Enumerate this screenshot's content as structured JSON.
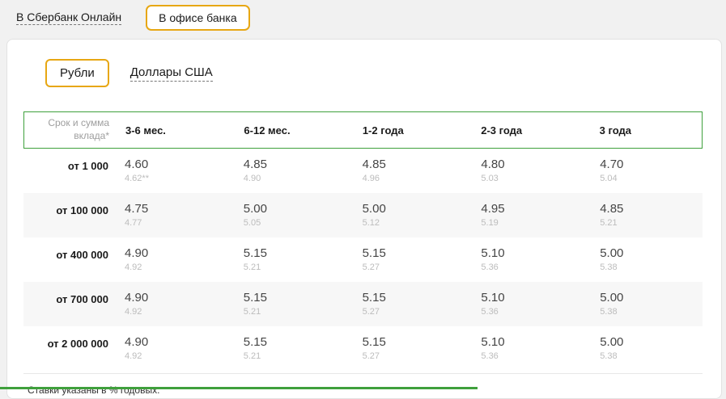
{
  "colors": {
    "accent_green": "#3fa03c",
    "accent_yellow": "#e7a713",
    "page_bg": "#f1f1f1",
    "row_stripe": "#f7f7f7",
    "sub_rate_text": "#bcbcbc"
  },
  "channel_switch": {
    "online_label": "В Сбербанк Онлайн",
    "office_label": "В офисе банка"
  },
  "currency_switch": {
    "rub_label": "Рубли",
    "usd_label": "Доллары США"
  },
  "table": {
    "corner_label": "Срок и сумма вклада*",
    "columns": [
      "3-6 мес.",
      "6-12 мес.",
      "1-2 года",
      "2-3 года",
      "3 года"
    ],
    "rows": [
      {
        "label": "от 1 000",
        "cells": [
          {
            "main": "4.60",
            "sub": "4.62**"
          },
          {
            "main": "4.85",
            "sub": "4.90"
          },
          {
            "main": "4.85",
            "sub": "4.96"
          },
          {
            "main": "4.80",
            "sub": "5.03"
          },
          {
            "main": "4.70",
            "sub": "5.04"
          }
        ]
      },
      {
        "label": "от 100 000",
        "cells": [
          {
            "main": "4.75",
            "sub": "4.77"
          },
          {
            "main": "5.00",
            "sub": "5.05"
          },
          {
            "main": "5.00",
            "sub": "5.12"
          },
          {
            "main": "4.95",
            "sub": "5.19"
          },
          {
            "main": "4.85",
            "sub": "5.21"
          }
        ]
      },
      {
        "label": "от 400 000",
        "cells": [
          {
            "main": "4.90",
            "sub": "4.92"
          },
          {
            "main": "5.15",
            "sub": "5.21"
          },
          {
            "main": "5.15",
            "sub": "5.27"
          },
          {
            "main": "5.10",
            "sub": "5.36"
          },
          {
            "main": "5.00",
            "sub": "5.38"
          }
        ]
      },
      {
        "label": "от 700 000",
        "cells": [
          {
            "main": "4.90",
            "sub": "4.92"
          },
          {
            "main": "5.15",
            "sub": "5.21"
          },
          {
            "main": "5.15",
            "sub": "5.27"
          },
          {
            "main": "5.10",
            "sub": "5.36"
          },
          {
            "main": "5.00",
            "sub": "5.38"
          }
        ]
      },
      {
        "label": "от 2 000 000",
        "cells": [
          {
            "main": "4.90",
            "sub": "4.92"
          },
          {
            "main": "5.15",
            "sub": "5.21"
          },
          {
            "main": "5.15",
            "sub": "5.27"
          },
          {
            "main": "5.10",
            "sub": "5.36"
          },
          {
            "main": "5.00",
            "sub": "5.38"
          }
        ]
      }
    ]
  },
  "footnote": "Ставки указаны в % годовых."
}
